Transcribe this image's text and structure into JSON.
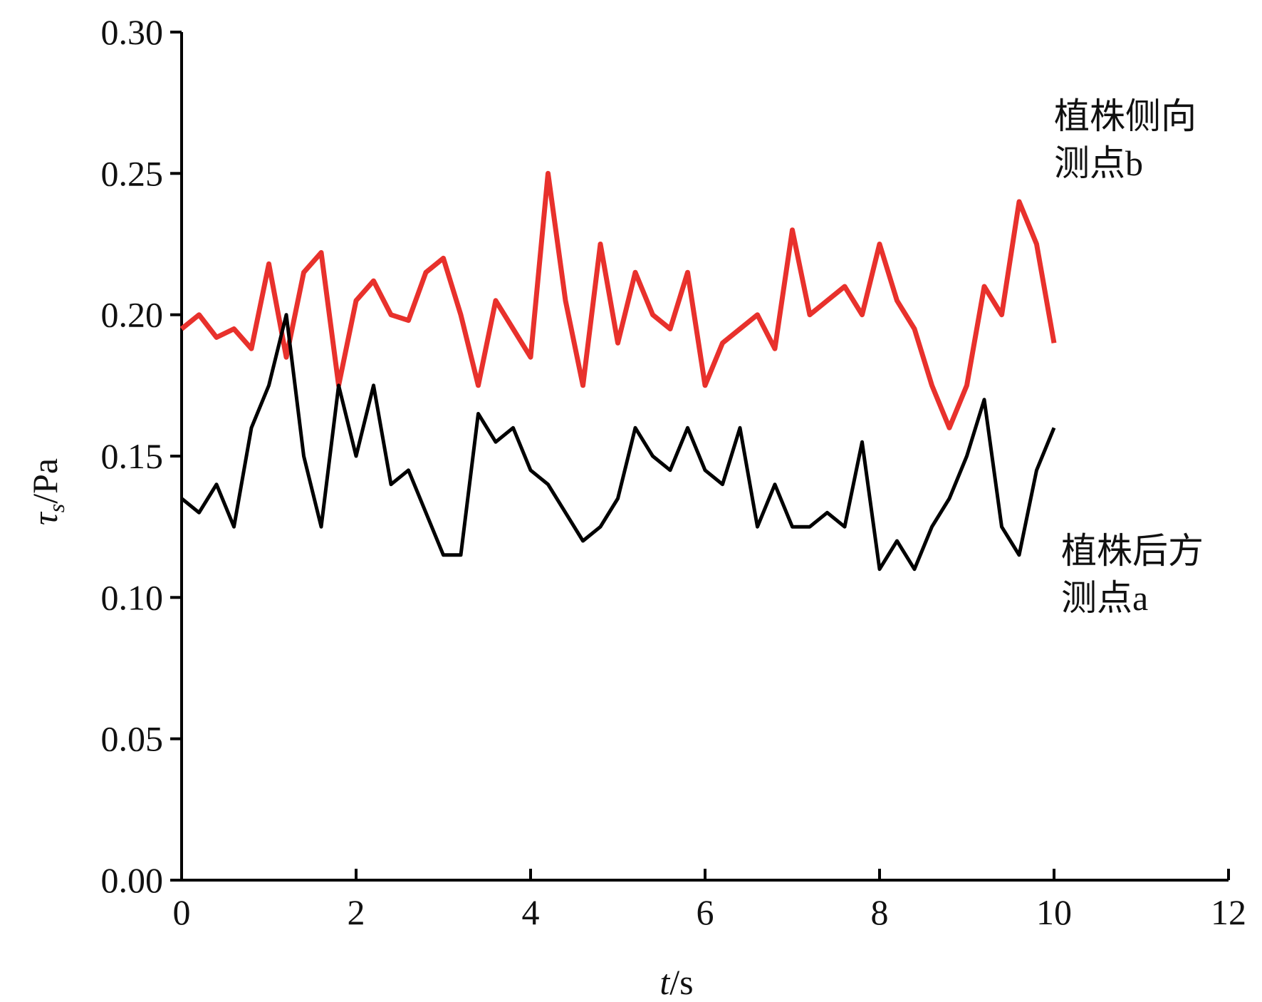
{
  "chart_data": {
    "type": "line",
    "xlabel": [
      "t",
      "/s"
    ],
    "ylabel": [
      "τ",
      "s",
      "/Pa"
    ],
    "xlim": [
      0,
      12
    ],
    "xticks": [
      0,
      2,
      4,
      6,
      8,
      10,
      12
    ],
    "ylim": [
      0,
      0.3
    ],
    "yticks": [
      {
        "value": 0,
        "label": "0.00"
      },
      0.05,
      {
        "value": 0.1,
        "label": "0.10"
      },
      0.15,
      {
        "value": 0.2,
        "label": "0.20"
      },
      0.25,
      {
        "value": 0.3,
        "label": "0.30"
      }
    ],
    "x": [
      0,
      0.2,
      0.4,
      0.6,
      0.8,
      1.0,
      1.2,
      1.4,
      1.6,
      1.8,
      2.0,
      2.2,
      2.4,
      2.6,
      2.8,
      3.0,
      3.2,
      3.4,
      3.6,
      3.8,
      4.0,
      4.2,
      4.4,
      4.6,
      4.8,
      5.0,
      5.2,
      5.4,
      5.6,
      5.8,
      6.0,
      6.2,
      6.4,
      6.6,
      6.8,
      7.0,
      7.2,
      7.4,
      7.6,
      7.8,
      8.0,
      8.2,
      8.4,
      8.6,
      8.8,
      9.0,
      9.2,
      9.4,
      9.6,
      9.8,
      10.0
    ],
    "series": [
      {
        "label": [
          "植株侧向",
          "测点b"
        ],
        "color": "#e8312c",
        "values": [
          0.195,
          0.2,
          0.192,
          0.195,
          0.188,
          0.218,
          0.185,
          0.215,
          0.222,
          0.175,
          0.205,
          0.212,
          0.2,
          0.198,
          0.215,
          0.22,
          0.2,
          0.175,
          0.205,
          0.195,
          0.185,
          0.25,
          0.205,
          0.175,
          0.225,
          0.19,
          0.215,
          0.2,
          0.195,
          0.215,
          0.175,
          0.19,
          0.195,
          0.2,
          0.188,
          0.23,
          0.2,
          0.205,
          0.21,
          0.2,
          0.225,
          0.205,
          0.195,
          0.175,
          0.16,
          0.175,
          0.21,
          0.2,
          0.24,
          0.225,
          0.19
        ]
      },
      {
        "label": [
          "植株后方",
          "测点a"
        ],
        "color": "#000000",
        "values": [
          0.135,
          0.13,
          0.14,
          0.125,
          0.16,
          0.175,
          0.2,
          0.15,
          0.125,
          0.175,
          0.15,
          0.175,
          0.14,
          0.145,
          0.13,
          0.115,
          0.115,
          0.165,
          0.155,
          0.16,
          0.145,
          0.14,
          0.13,
          0.12,
          0.125,
          0.135,
          0.16,
          0.15,
          0.145,
          0.16,
          0.145,
          0.14,
          0.16,
          0.125,
          0.14,
          0.125,
          0.125,
          0.13,
          0.125,
          0.155,
          0.11,
          0.12,
          0.11,
          0.125,
          0.135,
          0.15,
          0.17,
          0.125,
          0.115,
          0.145,
          0.16
        ]
      }
    ]
  }
}
